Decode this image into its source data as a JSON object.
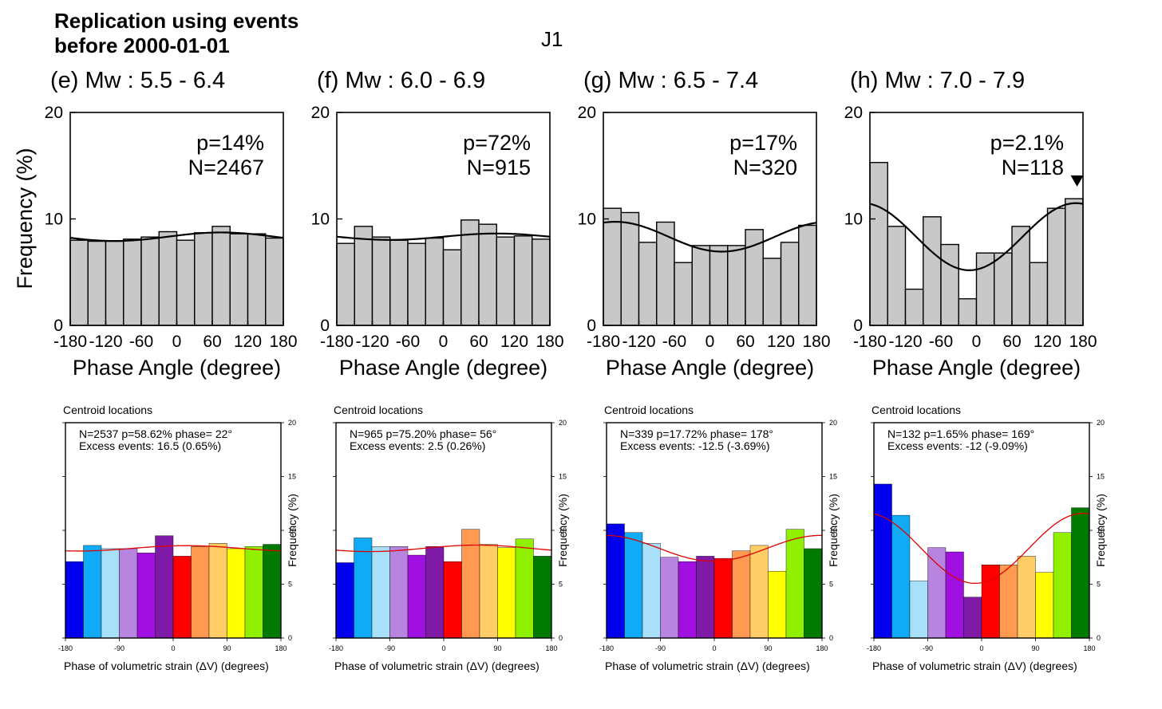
{
  "header": {
    "title_line1": "Replication using events",
    "title_line2": "before 2000-01-01",
    "code": "J1"
  },
  "top_row": {
    "ylabel": "Frequency (%)",
    "xlabel": "Phase Angle (degree)",
    "x_ticks": [
      "-180",
      "-120",
      "-60",
      "0",
      "60",
      "120",
      "180"
    ],
    "y_ticks": [
      "0",
      "10",
      "20"
    ],
    "bar_fill": "#c8c8c8"
  },
  "bottom_row": {
    "title": "Centroid locations",
    "xlabel": "Phase of volumetric strain (ΔV) (degrees)",
    "ylabel": "Frequency (%)",
    "x_ticks": [
      "-180",
      "-90",
      "0",
      "90",
      "180"
    ],
    "y_ticks": [
      "0",
      "5",
      "10",
      "15",
      "20"
    ],
    "fit_color": "#e00000",
    "bar_colors": [
      "#0000ee",
      "#10aaf5",
      "#a8e0fa",
      "#b784e0",
      "#a010e0",
      "#7e1aa6",
      "#ff0000",
      "#ff9a50",
      "#ffcc66",
      "#ffff00",
      "#90f000",
      "#007a00"
    ]
  },
  "chart_data": [
    {
      "type": "bar",
      "panel": "e",
      "title": "(e) Mw : 5.5 - 6.4",
      "stat_p": "p=14%",
      "stat_n": "N=2467",
      "x_bin_centers": [
        -165,
        -135,
        -105,
        -75,
        -45,
        -15,
        15,
        45,
        75,
        105,
        135,
        165
      ],
      "values": [
        8.0,
        7.9,
        7.9,
        8.1,
        8.3,
        8.8,
        8.0,
        8.7,
        9.3,
        8.6,
        8.6,
        8.2
      ],
      "fit": {
        "mean": 8.33,
        "amplitude": 0.4,
        "phase": 75
      },
      "xlim": [
        -180,
        180
      ],
      "ylim": [
        0,
        20
      ]
    },
    {
      "type": "bar",
      "panel": "f",
      "title": "(f) Mw : 6.0 - 6.9",
      "stat_p": "p=72%",
      "stat_n": "N=915",
      "x_bin_centers": [
        -165,
        -135,
        -105,
        -75,
        -45,
        -15,
        15,
        45,
        75,
        105,
        135,
        165
      ],
      "values": [
        7.7,
        9.3,
        8.3,
        8.0,
        7.7,
        8.2,
        7.1,
        9.9,
        9.5,
        8.3,
        8.4,
        8.1
      ],
      "fit": {
        "mean": 8.33,
        "amplitude": 0.3,
        "phase": 90
      },
      "xlim": [
        -180,
        180
      ],
      "ylim": [
        0,
        20
      ]
    },
    {
      "type": "bar",
      "panel": "g",
      "title": "(g) Mw : 6.5 - 7.4",
      "stat_p": "p=17%",
      "stat_n": "N=320",
      "x_bin_centers": [
        -165,
        -135,
        -105,
        -75,
        -45,
        -15,
        15,
        45,
        75,
        105,
        135,
        165
      ],
      "values": [
        11.0,
        10.6,
        7.8,
        9.7,
        5.9,
        7.5,
        7.5,
        7.5,
        9.0,
        6.3,
        7.8,
        9.4
      ],
      "fit": {
        "mean": 8.33,
        "amplitude": 1.4,
        "phase": -160
      },
      "xlim": [
        -180,
        180
      ],
      "ylim": [
        0,
        20
      ]
    },
    {
      "type": "bar",
      "panel": "h",
      "title": "(h) Mw : 7.0 - 7.9",
      "stat_p": "p=2.1%",
      "stat_n": "N=118",
      "marker_phase": 170,
      "x_bin_centers": [
        -165,
        -135,
        -105,
        -75,
        -45,
        -15,
        15,
        45,
        75,
        105,
        135,
        165
      ],
      "values": [
        15.3,
        9.3,
        3.4,
        10.2,
        7.6,
        2.5,
        6.8,
        6.8,
        9.3,
        5.9,
        11.0,
        11.9
      ],
      "fit": {
        "mean": 8.33,
        "amplitude": 3.15,
        "phase": 168
      },
      "xlim": [
        -180,
        180
      ],
      "ylim": [
        0,
        20
      ]
    },
    {
      "type": "bar",
      "panel": "centroid-1",
      "stat_line1": "N=2537   p=58.62%   phase= 22°",
      "stat_line2": "Excess events: 16.5 (0.65%)",
      "x_bin_centers": [
        -165,
        -135,
        -105,
        -75,
        -45,
        -15,
        15,
        45,
        75,
        105,
        135,
        165
      ],
      "values": [
        7.1,
        8.6,
        8.3,
        8.3,
        7.9,
        9.5,
        7.6,
        8.5,
        8.8,
        8.3,
        8.5,
        8.7
      ],
      "fit": {
        "mean": 8.33,
        "amplitude": 0.25,
        "phase": 22
      },
      "xlim": [
        -180,
        180
      ],
      "ylim": [
        0,
        20
      ]
    },
    {
      "type": "bar",
      "panel": "centroid-2",
      "stat_line1": "N=965   p=75.20%   phase= 56°",
      "stat_line2": "Excess events: 2.5 (0.26%)",
      "x_bin_centers": [
        -165,
        -135,
        -105,
        -75,
        -45,
        -15,
        15,
        45,
        75,
        105,
        135,
        165
      ],
      "values": [
        7.0,
        9.3,
        8.5,
        8.5,
        7.7,
        8.5,
        7.1,
        10.1,
        8.7,
        8.4,
        9.2,
        7.6
      ],
      "fit": {
        "mean": 8.33,
        "amplitude": 0.3,
        "phase": 56
      },
      "xlim": [
        -180,
        180
      ],
      "ylim": [
        0,
        20
      ]
    },
    {
      "type": "bar",
      "panel": "centroid-3",
      "stat_line1": "N=339   p=17.72%   phase= 178°",
      "stat_line2": "Excess events: -12.5 (-3.69%)",
      "x_bin_centers": [
        -165,
        -135,
        -105,
        -75,
        -45,
        -15,
        15,
        45,
        75,
        105,
        135,
        165
      ],
      "values": [
        10.6,
        9.8,
        8.8,
        7.5,
        7.1,
        7.6,
        7.4,
        8.1,
        8.6,
        6.2,
        10.1,
        8.3
      ],
      "fit": {
        "mean": 8.33,
        "amplitude": 1.2,
        "phase": 178
      },
      "xlim": [
        -180,
        180
      ],
      "ylim": [
        0,
        20
      ]
    },
    {
      "type": "bar",
      "panel": "centroid-4",
      "stat_line1": "N=132   p=1.65%   phase= 169°",
      "stat_line2": "Excess events: -12 (-9.09%)",
      "x_bin_centers": [
        -165,
        -135,
        -105,
        -75,
        -45,
        -15,
        15,
        45,
        75,
        105,
        135,
        165
      ],
      "values": [
        14.3,
        11.4,
        5.3,
        8.4,
        8.0,
        3.8,
        6.8,
        6.8,
        7.6,
        6.1,
        9.8,
        12.1
      ],
      "fit": {
        "mean": 8.33,
        "amplitude": 3.25,
        "phase": 169
      },
      "xlim": [
        -180,
        180
      ],
      "ylim": [
        0,
        20
      ]
    }
  ]
}
